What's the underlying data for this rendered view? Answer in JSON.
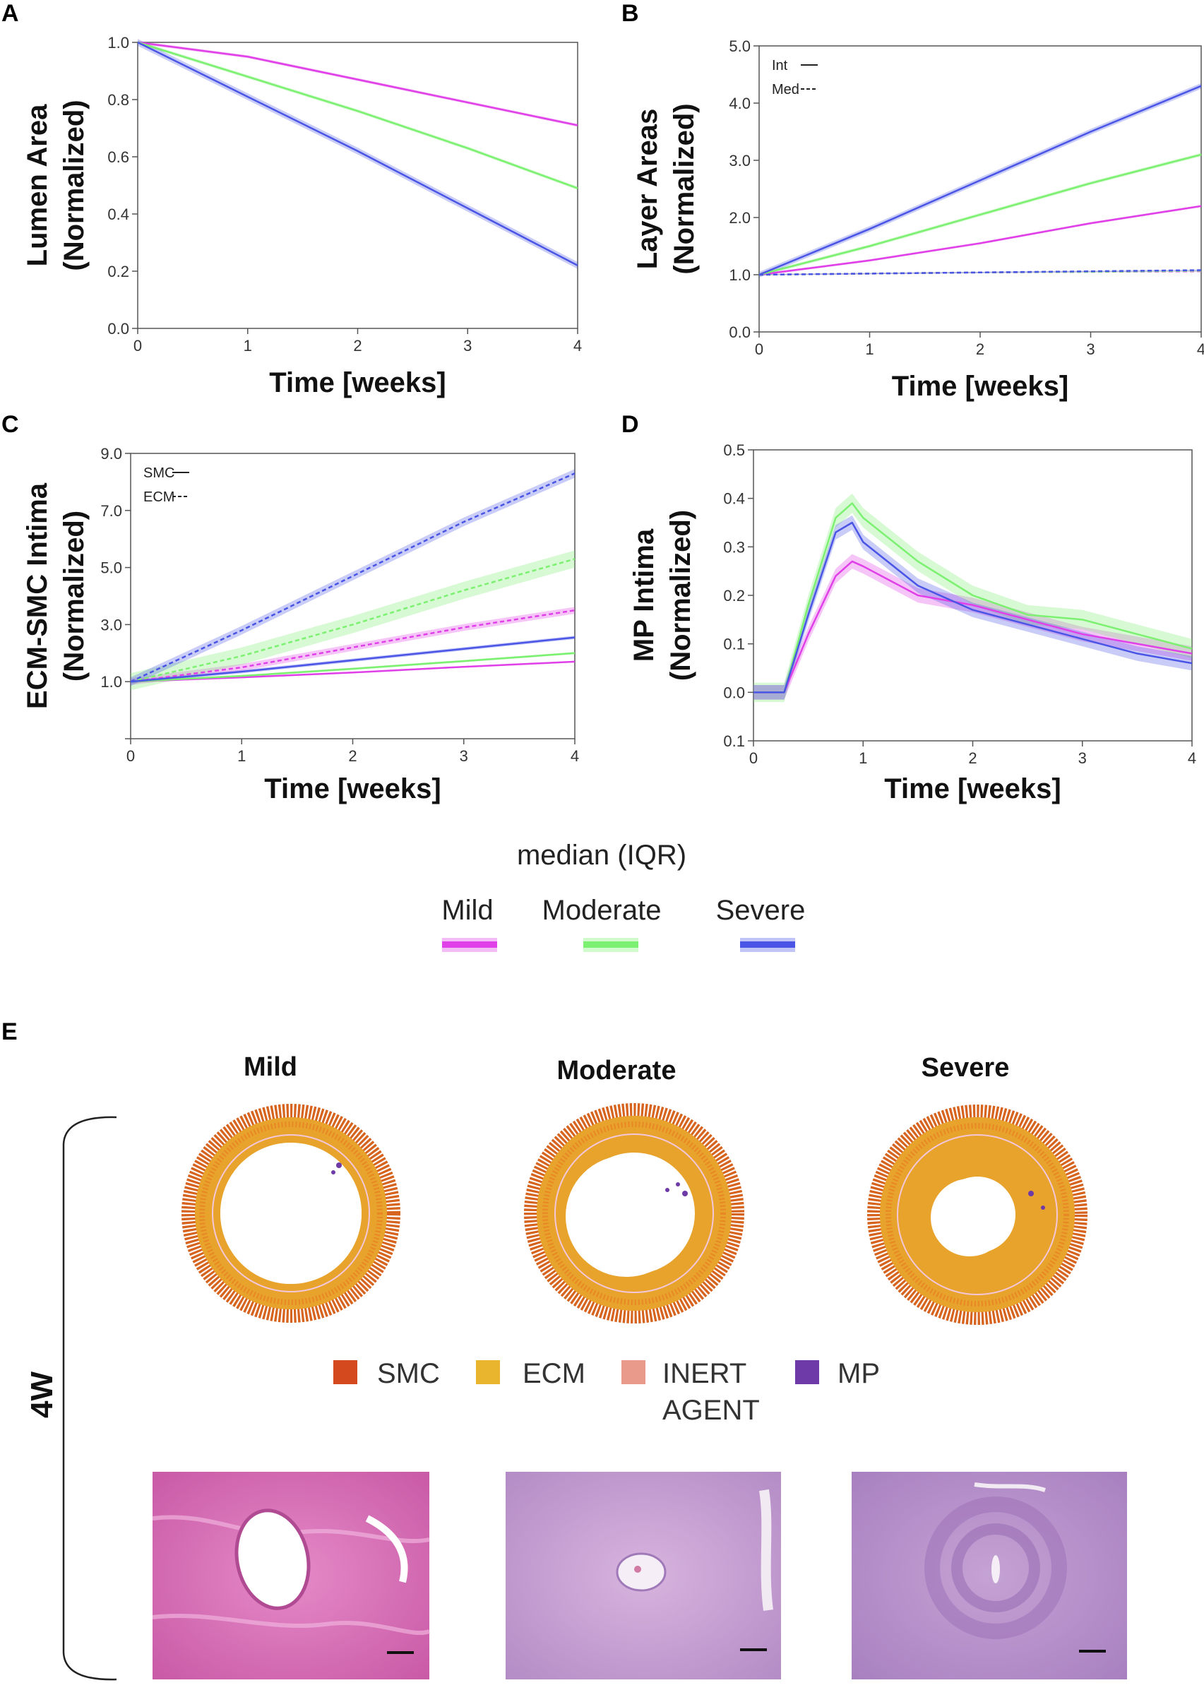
{
  "chart_data": [
    {
      "panel": "A",
      "type": "line",
      "title": "",
      "xlabel": "Time [weeks]",
      "ylabel": [
        "Lumen Area",
        "(Normalized)"
      ],
      "xlim": [
        0,
        4
      ],
      "ylim": [
        0,
        1
      ],
      "xticks": [
        "0",
        "1",
        "2",
        "3",
        "4"
      ],
      "yticks": [
        "0.0",
        "0.2",
        "0.4",
        "0.6",
        "0.8",
        "1.0"
      ],
      "x": [
        0,
        1,
        2,
        3,
        4
      ],
      "series": [
        {
          "name": "Mild",
          "style": "solid",
          "values": [
            1.0,
            0.95,
            0.87,
            0.79,
            0.71
          ],
          "band": 0.005
        },
        {
          "name": "Moderate",
          "style": "solid",
          "values": [
            1.0,
            0.88,
            0.76,
            0.63,
            0.49
          ],
          "band": 0.006
        },
        {
          "name": "Severe",
          "style": "solid",
          "values": [
            1.0,
            0.81,
            0.62,
            0.42,
            0.22
          ],
          "band": 0.012
        }
      ]
    },
    {
      "panel": "B",
      "type": "line",
      "title": "",
      "xlabel": "Time [weeks]",
      "ylabel": [
        "Layer Areas",
        "(Normalized)"
      ],
      "xlim": [
        0,
        4
      ],
      "ylim": [
        0,
        5
      ],
      "xticks": [
        "0",
        "1",
        "2",
        "3",
        "4"
      ],
      "yticks": [
        "0.0",
        "1.0",
        "2.0",
        "3.0",
        "4.0",
        "5.0"
      ],
      "legend": [
        {
          "label": "Int",
          "style": "solid"
        },
        {
          "label": "Med",
          "style": "dashed"
        }
      ],
      "x": [
        0,
        1,
        2,
        3,
        4
      ],
      "series": [
        {
          "name": "Mild Int",
          "color_of": "Mild",
          "style": "solid",
          "values": [
            1.0,
            1.25,
            1.55,
            1.9,
            2.2
          ],
          "band": 0.02
        },
        {
          "name": "Moderate Int",
          "color_of": "Moderate",
          "style": "solid",
          "values": [
            1.0,
            1.5,
            2.05,
            2.6,
            3.1
          ],
          "band": 0.03
        },
        {
          "name": "Severe Int",
          "color_of": "Severe",
          "style": "solid",
          "values": [
            1.0,
            1.8,
            2.65,
            3.5,
            4.3
          ],
          "band": 0.05
        },
        {
          "name": "Mild Med",
          "color_of": "Mild",
          "style": "dashed",
          "values": [
            1.0,
            1.02,
            1.04,
            1.05,
            1.06
          ],
          "band": 0.01
        },
        {
          "name": "Moderate Med",
          "color_of": "Moderate",
          "style": "dashed",
          "values": [
            1.0,
            1.02,
            1.04,
            1.05,
            1.07
          ],
          "band": 0.01
        },
        {
          "name": "Severe Med",
          "color_of": "Severe",
          "style": "dashed",
          "values": [
            1.0,
            1.02,
            1.04,
            1.06,
            1.08
          ],
          "band": 0.01
        }
      ]
    },
    {
      "panel": "C",
      "type": "line",
      "title": "",
      "xlabel": "Time [weeks]",
      "ylabel": [
        "ECM-SMC Intima",
        "(Normalized)"
      ],
      "xlim": [
        0,
        4
      ],
      "ylim": [
        -1,
        9
      ],
      "xticks": [
        "0",
        "1",
        "2",
        "3",
        "4"
      ],
      "ytickvals": [
        -1,
        1,
        3,
        5,
        7,
        9
      ],
      "yticks": [
        "",
        "1.0",
        "3.0",
        "5.0",
        "7.0",
        "9.0"
      ],
      "legend": [
        {
          "label": "SMC",
          "style": "solid"
        },
        {
          "label": "ECM",
          "style": "dashed"
        }
      ],
      "x": [
        0,
        1,
        2,
        3,
        4
      ],
      "series": [
        {
          "name": "Mild ECM",
          "color_of": "Mild",
          "style": "dashed",
          "values": [
            1.0,
            1.5,
            2.2,
            2.9,
            3.5
          ],
          "band": 0.12
        },
        {
          "name": "Moderate ECM",
          "color_of": "Moderate",
          "style": "dashed",
          "values": [
            1.0,
            1.9,
            3.0,
            4.2,
            5.3
          ],
          "band": 0.3
        },
        {
          "name": "Severe ECM",
          "color_of": "Severe",
          "style": "dashed",
          "values": [
            1.0,
            2.8,
            4.7,
            6.6,
            8.3
          ],
          "band": 0.15
        },
        {
          "name": "Mild SMC",
          "color_of": "Mild",
          "style": "solid",
          "values": [
            1.0,
            1.15,
            1.32,
            1.52,
            1.7
          ],
          "band": 0.03
        },
        {
          "name": "Moderate SMC",
          "color_of": "Moderate",
          "style": "solid",
          "values": [
            1.0,
            1.2,
            1.45,
            1.72,
            2.0
          ],
          "band": 0.04
        },
        {
          "name": "Severe SMC",
          "color_of": "Severe",
          "style": "solid",
          "values": [
            1.0,
            1.35,
            1.75,
            2.15,
            2.55
          ],
          "band": 0.06
        }
      ]
    },
    {
      "panel": "D",
      "type": "line",
      "title": "",
      "xlabel": "Time [weeks]",
      "ylabel": [
        "MP Intima",
        "(Normalized)"
      ],
      "xlim": [
        0,
        4
      ],
      "ylim": [
        -0.1,
        0.5
      ],
      "xticks": [
        "0",
        "1",
        "2",
        "3",
        "4"
      ],
      "ytickvals": [
        -0.1,
        0.0,
        0.1,
        0.2,
        0.3,
        0.4,
        0.5
      ],
      "yticks": [
        "0.1",
        "0.0",
        "0.1",
        "0.2",
        "0.3",
        "0.4",
        "0.5"
      ],
      "x": [
        0,
        0.28,
        0.5,
        0.75,
        0.9,
        1.0,
        1.5,
        2.0,
        2.5,
        3.0,
        3.5,
        4.0
      ],
      "series": [
        {
          "name": "Mild",
          "style": "solid",
          "values": [
            0,
            0,
            0.12,
            0.24,
            0.27,
            0.26,
            0.2,
            0.18,
            0.15,
            0.12,
            0.1,
            0.08
          ],
          "band": 0.015
        },
        {
          "name": "Moderate",
          "style": "solid",
          "values": [
            0,
            0,
            0.18,
            0.36,
            0.39,
            0.36,
            0.27,
            0.2,
            0.16,
            0.15,
            0.12,
            0.09
          ],
          "band": 0.02
        },
        {
          "name": "Severe",
          "style": "solid",
          "values": [
            0,
            0,
            0.16,
            0.33,
            0.35,
            0.31,
            0.22,
            0.17,
            0.14,
            0.11,
            0.08,
            0.06
          ],
          "band": 0.015
        }
      ]
    }
  ],
  "series_colors": {
    "Mild": "#e040e8",
    "Moderate": "#7cf070",
    "Severe": "#4a55e6"
  },
  "shared_legend": {
    "title": "median (IQR)",
    "items": [
      {
        "label": "Mild",
        "color": "#e040e8"
      },
      {
        "label": "Moderate",
        "color": "#7cf070"
      },
      {
        "label": "Severe",
        "color": "#4a55e6"
      }
    ]
  },
  "panel_e": {
    "letter": "E",
    "row_label": "4W",
    "columns": [
      "Mild",
      "Moderate",
      "Severe"
    ],
    "cell_legend": [
      {
        "label": "SMC",
        "color": "#d44a1e"
      },
      {
        "label": "ECM",
        "color": "#eab52e"
      },
      {
        "label": "INERT AGENT",
        "color": "#e99a8a"
      },
      {
        "label": "MP",
        "color": "#6e3aa8"
      }
    ]
  }
}
